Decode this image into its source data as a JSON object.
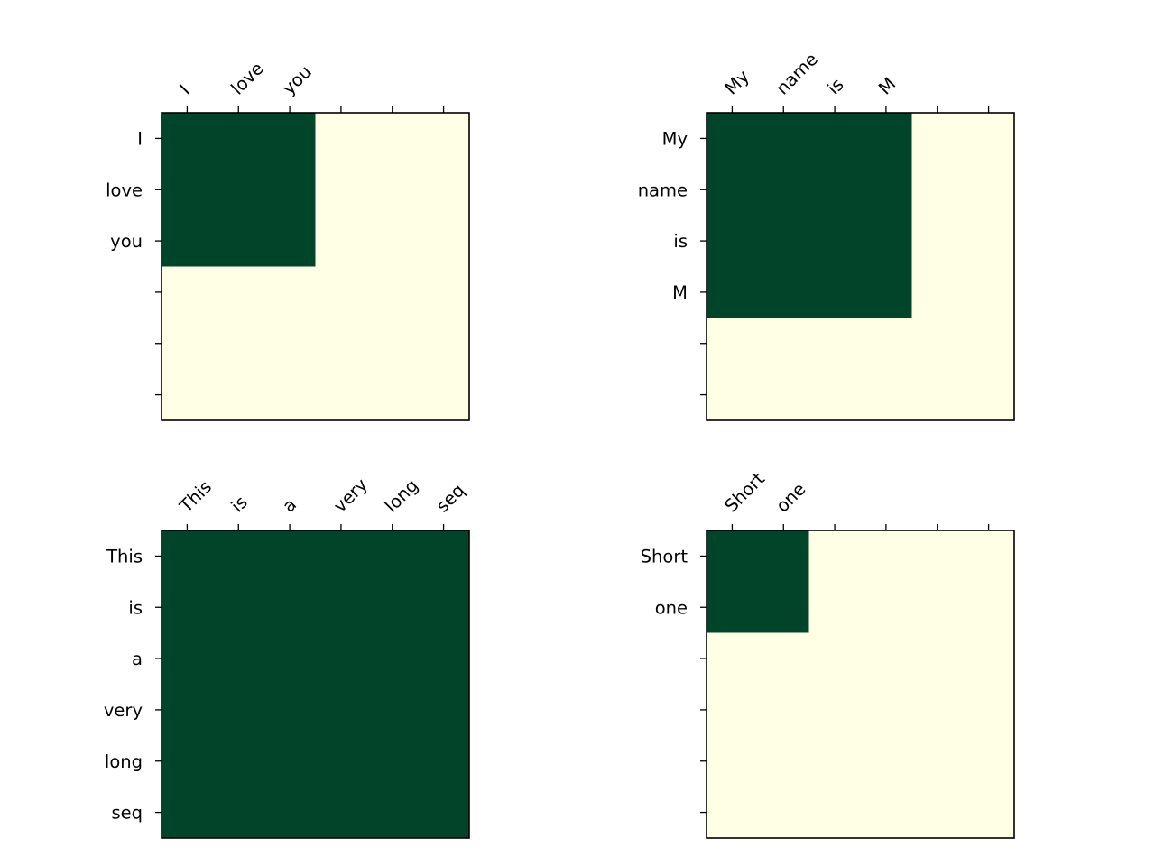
{
  "colors": {
    "masked": "#ffffe5",
    "unmasked": "#004529",
    "axes": "#000000",
    "background": "#ffffff"
  },
  "chart_data": [
    {
      "type": "heatmap",
      "colormap": "YlGn",
      "x_tick_labels": [
        "I",
        "love",
        "you",
        "",
        "",
        ""
      ],
      "y_tick_labels": [
        "I",
        "love",
        "you",
        "",
        "",
        ""
      ],
      "values": [
        [
          1,
          1,
          1,
          0,
          0,
          0
        ],
        [
          1,
          1,
          1,
          0,
          0,
          0
        ],
        [
          1,
          1,
          1,
          0,
          0,
          0
        ],
        [
          0,
          0,
          0,
          0,
          0,
          0
        ],
        [
          0,
          0,
          0,
          0,
          0,
          0
        ],
        [
          0,
          0,
          0,
          0,
          0,
          0
        ]
      ]
    },
    {
      "type": "heatmap",
      "colormap": "YlGn",
      "x_tick_labels": [
        "My",
        "name",
        "is",
        "M",
        "",
        ""
      ],
      "y_tick_labels": [
        "My",
        "name",
        "is",
        "M",
        "",
        ""
      ],
      "values": [
        [
          1,
          1,
          1,
          1,
          0,
          0
        ],
        [
          1,
          1,
          1,
          1,
          0,
          0
        ],
        [
          1,
          1,
          1,
          1,
          0,
          0
        ],
        [
          1,
          1,
          1,
          1,
          0,
          0
        ],
        [
          0,
          0,
          0,
          0,
          0,
          0
        ],
        [
          0,
          0,
          0,
          0,
          0,
          0
        ]
      ]
    },
    {
      "type": "heatmap",
      "colormap": "YlGn",
      "x_tick_labels": [
        "This",
        "is",
        "a",
        "very",
        "long",
        "seq"
      ],
      "y_tick_labels": [
        "This",
        "is",
        "a",
        "very",
        "long",
        "seq"
      ],
      "values": [
        [
          1,
          1,
          1,
          1,
          1,
          1
        ],
        [
          1,
          1,
          1,
          1,
          1,
          1
        ],
        [
          1,
          1,
          1,
          1,
          1,
          1
        ],
        [
          1,
          1,
          1,
          1,
          1,
          1
        ],
        [
          1,
          1,
          1,
          1,
          1,
          1
        ],
        [
          1,
          1,
          1,
          1,
          1,
          1
        ]
      ]
    },
    {
      "type": "heatmap",
      "colormap": "YlGn",
      "x_tick_labels": [
        "Short",
        "one",
        "",
        "",
        "",
        ""
      ],
      "y_tick_labels": [
        "Short",
        "one",
        "",
        "",
        "",
        ""
      ],
      "values": [
        [
          1,
          1,
          0,
          0,
          0,
          0
        ],
        [
          1,
          1,
          0,
          0,
          0,
          0
        ],
        [
          0,
          0,
          0,
          0,
          0,
          0
        ],
        [
          0,
          0,
          0,
          0,
          0,
          0
        ],
        [
          0,
          0,
          0,
          0,
          0,
          0
        ],
        [
          0,
          0,
          0,
          0,
          0,
          0
        ]
      ]
    }
  ]
}
